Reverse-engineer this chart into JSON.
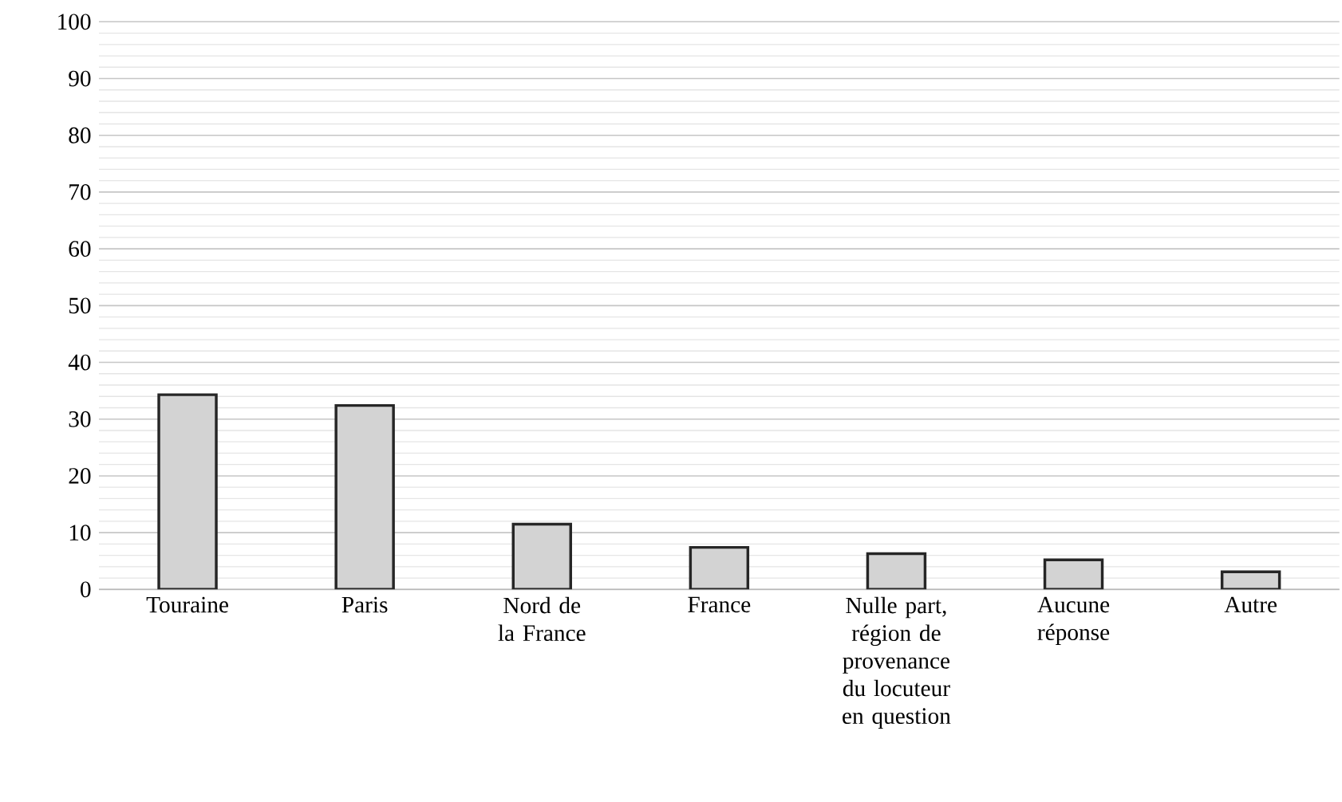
{
  "chart_data": {
    "type": "bar",
    "categories": [
      "Touraine",
      "Paris",
      "Nord de la France",
      "France",
      "Nulle part, région de provenance du locuteur en question",
      "Aucune réponse",
      "Autre"
    ],
    "values": [
      34.3,
      32.4,
      11.5,
      7.4,
      6.3,
      5.2,
      3.1
    ],
    "color": "#d3d3d3",
    "ylim": [
      0,
      100
    ],
    "yticks": [
      0,
      10,
      20,
      30,
      40,
      50,
      60,
      70,
      80,
      90,
      100
    ],
    "grid": "y"
  }
}
